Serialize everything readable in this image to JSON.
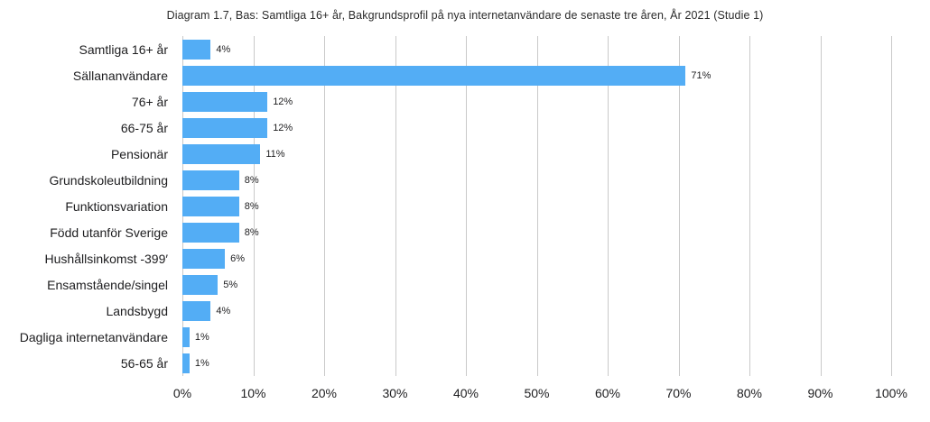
{
  "page": {
    "background_color": "#ffffff",
    "text_color": "#1d1d1f"
  },
  "chart_data": {
    "type": "bar",
    "orientation": "horizontal",
    "title": "Diagram 1.7, Bas: Samtliga 16+ år, Bakgrundsprofil på nya internetanvändare de senaste tre åren, År 2021 (Studie 1)",
    "categories": [
      "Samtliga 16+ år",
      "Sällananvändare",
      "76+ år",
      "66-75 år",
      "Pensionär",
      "Grundskoleutbildning",
      "Funktionsvariation",
      "Född utanför Sverige",
      "Hushållsinkomst -399′",
      "Ensamstående/singel",
      "Landsbygd",
      "Dagliga internetanvändare",
      "56-65 år"
    ],
    "values": [
      4,
      71,
      12,
      12,
      11,
      8,
      8,
      8,
      6,
      5,
      4,
      1,
      1
    ],
    "value_labels": [
      "4%",
      "71%",
      "12%",
      "12%",
      "11%",
      "8%",
      "8%",
      "8%",
      "6%",
      "5%",
      "4%",
      "1%",
      "1%"
    ],
    "x_ticks": [
      "0%",
      "10%",
      "20%",
      "30%",
      "40%",
      "50%",
      "60%",
      "70%",
      "80%",
      "90%",
      "100%"
    ],
    "xlim": [
      0,
      100
    ],
    "xlabel": "",
    "ylabel": "",
    "grid": "vertical-only",
    "legend": "none",
    "bar_color": "#53adf5",
    "gridline_color": "#c9c9c9"
  }
}
